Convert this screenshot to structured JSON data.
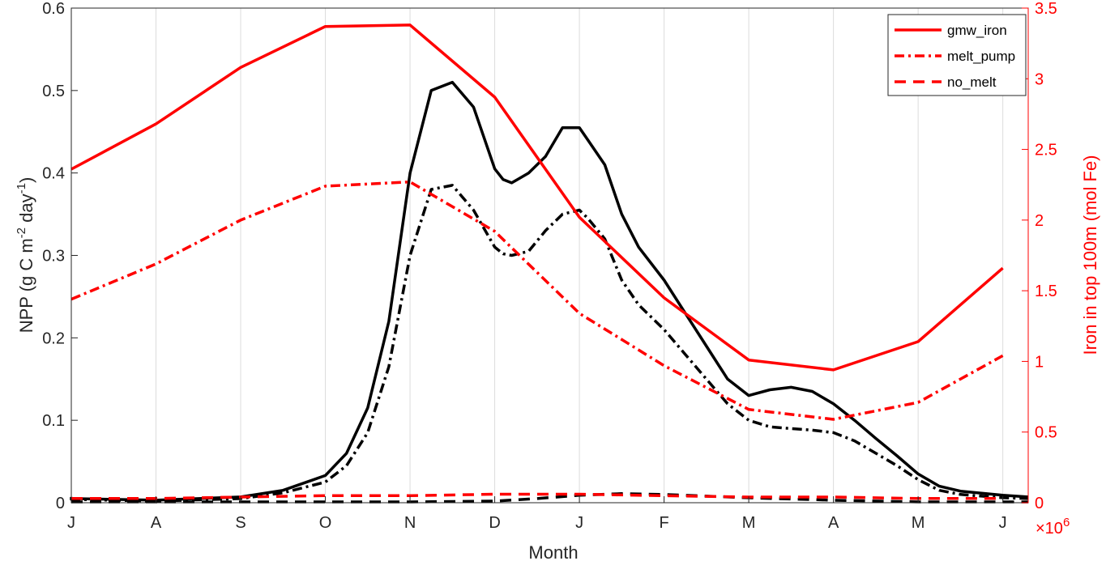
{
  "chart_data": {
    "type": "line",
    "xlabel": "Month",
    "ylabel_left": "NPP (g C m-2 day-1)",
    "ylabel_left_parts": [
      "NPP (g C m",
      "-2",
      " day",
      "-1",
      ")"
    ],
    "ylabel_right": "Iron in top 100m (mol Fe)",
    "right_exponent": "×10",
    "right_exponent_power": "6",
    "xlim": [
      0,
      11.3
    ],
    "ylim_left": [
      0,
      0.6
    ],
    "ylim_right": [
      0,
      3.5
    ],
    "x_ticks": [
      0,
      1,
      2,
      3,
      4,
      5,
      6,
      7,
      8,
      9,
      10,
      11
    ],
    "x_tick_labels": [
      "J",
      "A",
      "S",
      "O",
      "N",
      "D",
      "J",
      "F",
      "M",
      "A",
      "M",
      "J"
    ],
    "y_left_ticks": [
      0,
      0.1,
      0.2,
      0.3,
      0.4,
      0.5,
      0.6
    ],
    "y_left_tick_labels": [
      "0",
      "0.1",
      "0.2",
      "0.3",
      "0.4",
      "0.5",
      "0.6"
    ],
    "y_right_ticks": [
      0,
      0.5,
      1,
      1.5,
      2,
      2.5,
      3,
      3.5
    ],
    "y_right_tick_labels": [
      "0",
      "0.5",
      "1",
      "1.5",
      "2",
      "2.5",
      "3",
      "3.5"
    ],
    "grid": "vertical",
    "legend_position": "top-right",
    "legend": [
      {
        "label": "gmw_iron",
        "style": "solid",
        "color": "#ff0000"
      },
      {
        "label": "melt_pump",
        "style": "dashdot",
        "color": "#ff0000"
      },
      {
        "label": "no_melt",
        "style": "dashed",
        "color": "#ff0000"
      }
    ],
    "colors": {
      "npp": "#000000",
      "iron": "#ff0000",
      "grid": "#dcdcdc"
    },
    "series": [
      {
        "name": "gmw_iron",
        "axis": "left",
        "style": "solid",
        "color": "#000000",
        "x": [
          -0.5,
          0,
          1,
          2,
          2.5,
          3,
          3.25,
          3.5,
          3.75,
          4,
          4.25,
          4.5,
          4.75,
          5,
          5.1,
          5.2,
          5.4,
          5.6,
          5.8,
          6,
          6.1,
          6.3,
          6.5,
          6.7,
          7,
          7.25,
          7.5,
          7.75,
          8,
          8.25,
          8.5,
          8.75,
          9,
          9.25,
          9.5,
          9.75,
          10,
          10.25,
          10.5,
          11,
          11.3
        ],
        "y": [
          0.007,
          0.005,
          0.003,
          0.007,
          0.015,
          0.033,
          0.06,
          0.115,
          0.22,
          0.4,
          0.5,
          0.51,
          0.48,
          0.405,
          0.392,
          0.388,
          0.4,
          0.42,
          0.455,
          0.455,
          0.44,
          0.41,
          0.35,
          0.31,
          0.27,
          0.23,
          0.19,
          0.15,
          0.13,
          0.137,
          0.14,
          0.135,
          0.12,
          0.1,
          0.078,
          0.057,
          0.035,
          0.02,
          0.014,
          0.009,
          0.007
        ]
      },
      {
        "name": "melt_pump",
        "axis": "left",
        "style": "dashdot",
        "color": "#000000",
        "x": [
          -0.5,
          0,
          1,
          2,
          2.5,
          3,
          3.25,
          3.5,
          3.75,
          4,
          4.25,
          4.5,
          4.75,
          5,
          5.1,
          5.2,
          5.4,
          5.6,
          5.8,
          6,
          6.1,
          6.3,
          6.5,
          6.7,
          7,
          7.25,
          7.5,
          7.75,
          8,
          8.25,
          8.5,
          8.75,
          9,
          9.25,
          9.5,
          9.75,
          10,
          10.25,
          10.5,
          11,
          11.3
        ],
        "y": [
          0.005,
          0.004,
          0.002,
          0.005,
          0.012,
          0.025,
          0.045,
          0.085,
          0.165,
          0.3,
          0.38,
          0.385,
          0.355,
          0.31,
          0.302,
          0.3,
          0.305,
          0.33,
          0.35,
          0.355,
          0.345,
          0.32,
          0.27,
          0.24,
          0.21,
          0.18,
          0.15,
          0.12,
          0.1,
          0.092,
          0.09,
          0.088,
          0.085,
          0.075,
          0.06,
          0.045,
          0.028,
          0.015,
          0.01,
          0.006,
          0.005
        ]
      },
      {
        "name": "no_melt",
        "axis": "left",
        "style": "dashed",
        "color": "#000000",
        "x": [
          -0.5,
          0,
          1,
          2,
          3,
          4,
          5,
          5.5,
          6,
          6.5,
          7,
          8,
          9,
          10,
          11,
          11.3
        ],
        "y": [
          0.001,
          0.001,
          0.001,
          0.001,
          0.001,
          0.001,
          0.002,
          0.005,
          0.009,
          0.011,
          0.01,
          0.006,
          0.003,
          0.001,
          0.001,
          0.001
        ]
      },
      {
        "name": "gmw_iron",
        "axis": "right",
        "style": "solid",
        "color": "#ff0000",
        "x": [
          0,
          1,
          2,
          3,
          4,
          5,
          6,
          7,
          8,
          9,
          10,
          11
        ],
        "y": [
          2.36,
          2.68,
          3.08,
          3.37,
          3.38,
          2.87,
          2.02,
          1.45,
          1.01,
          0.94,
          1.14,
          1.66
        ]
      },
      {
        "name": "melt_pump",
        "axis": "right",
        "style": "dashdot",
        "color": "#ff0000",
        "x": [
          0,
          1,
          2,
          3,
          4,
          5,
          6,
          7,
          8,
          9,
          10,
          11
        ],
        "y": [
          1.44,
          1.69,
          2.0,
          2.24,
          2.27,
          1.92,
          1.34,
          0.97,
          0.66,
          0.59,
          0.71,
          1.04
        ]
      },
      {
        "name": "no_melt",
        "axis": "right",
        "style": "dashed",
        "color": "#ff0000",
        "x": [
          0,
          1,
          2,
          3,
          4,
          5,
          6,
          7,
          8,
          9,
          10,
          11
        ],
        "y": [
          0.03,
          0.03,
          0.04,
          0.05,
          0.05,
          0.06,
          0.06,
          0.05,
          0.04,
          0.04,
          0.03,
          0.03
        ]
      }
    ]
  }
}
